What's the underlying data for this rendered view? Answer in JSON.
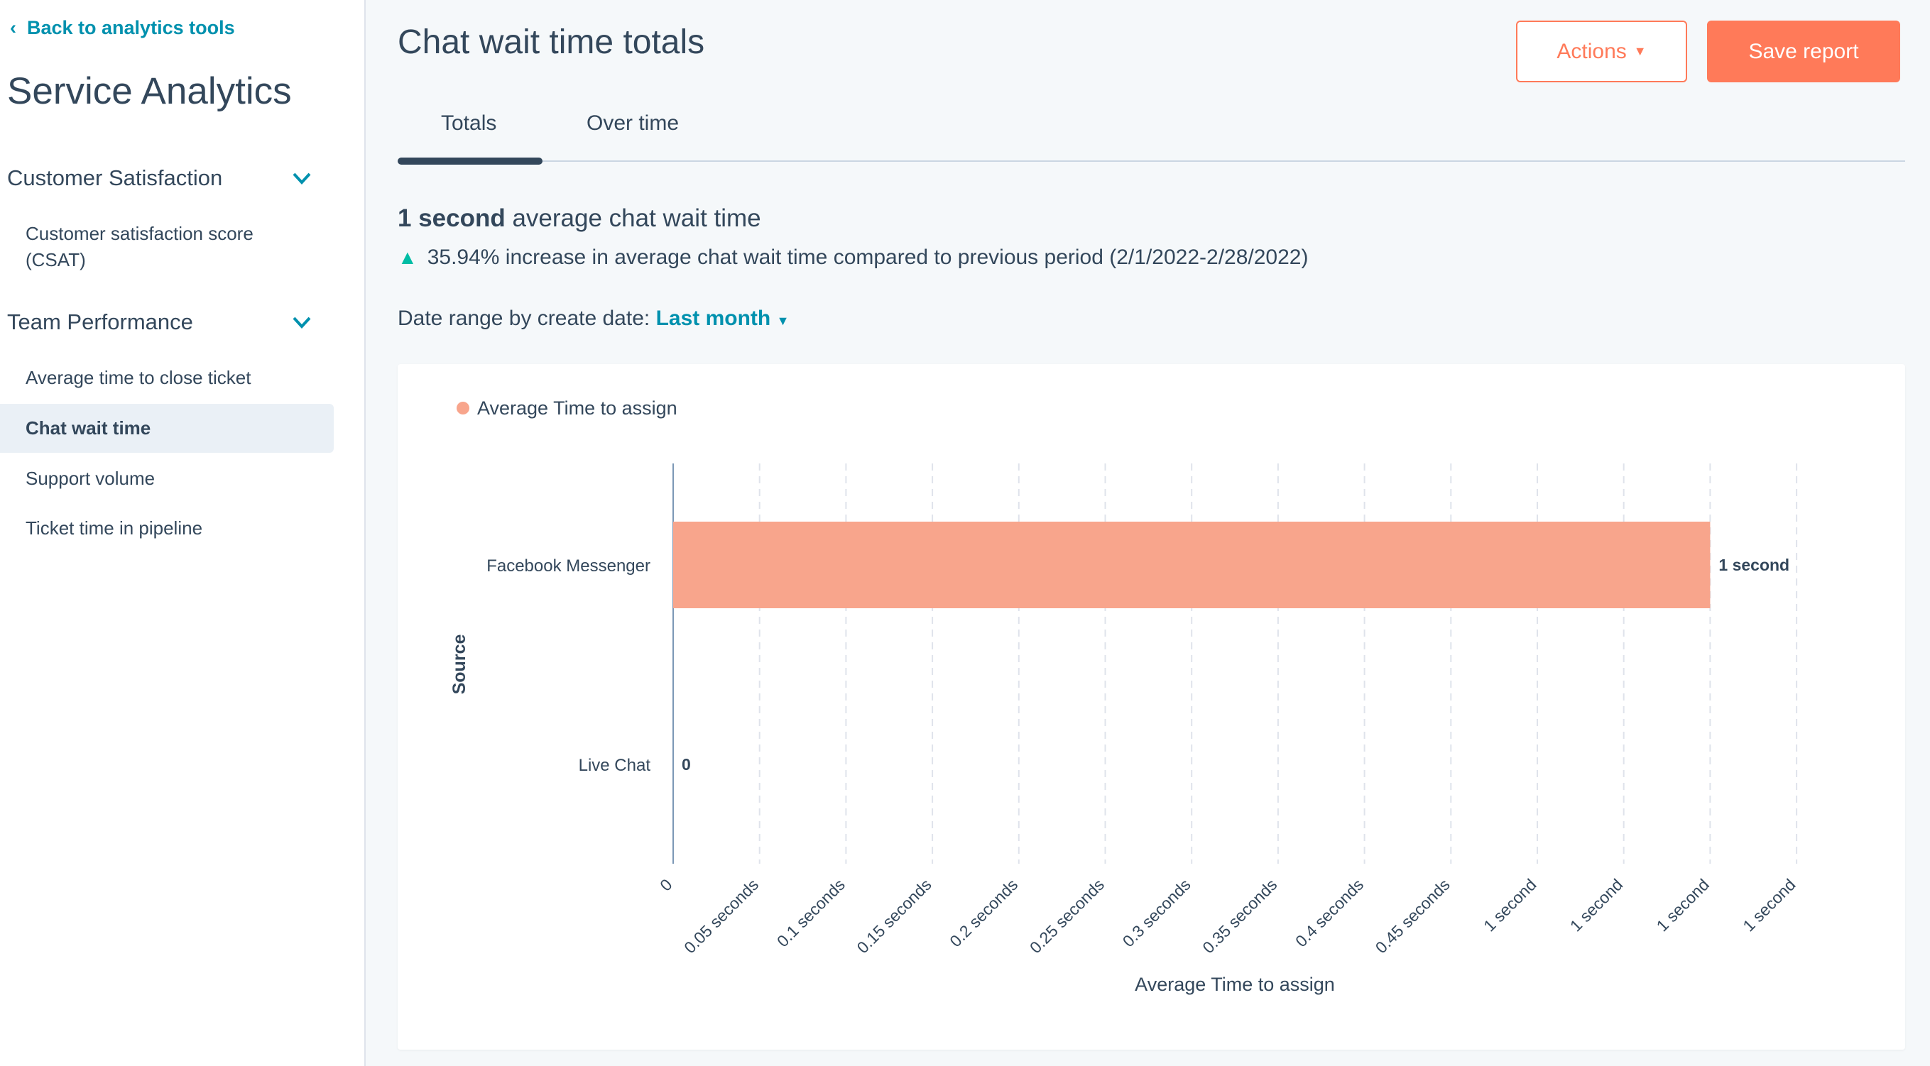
{
  "sidebar": {
    "back_link": "Back to analytics tools",
    "title": "Service Analytics",
    "sections": [
      {
        "label": "Customer Satisfaction",
        "items": [
          "Customer satisfaction score",
          "(CSAT)"
        ]
      },
      {
        "label": "Team Performance",
        "items": [
          "Average time to close ticket",
          "Chat wait time",
          "Support volume",
          "Ticket time in pipeline"
        ]
      }
    ],
    "selected": "Chat wait time"
  },
  "header": {
    "title": "Chat wait time totals",
    "actions_label": "Actions",
    "save_label": "Save report"
  },
  "tabs": [
    {
      "label": "Totals",
      "active": true
    },
    {
      "label": "Over time",
      "active": false
    }
  ],
  "summary": {
    "value": "1 second",
    "value_suffix": "average chat wait time",
    "change": "35.94% increase in average chat wait time compared to previous period (2/1/2022-2/28/2022)",
    "change_color": "#00bda5"
  },
  "date_range": {
    "label": "Date range by create date:",
    "value": "Last month"
  },
  "chart_data": {
    "type": "bar",
    "orientation": "horizontal",
    "legend": "top-left",
    "grid": true,
    "categories": [
      "Facebook Messenger",
      "Live Chat"
    ],
    "series": [
      {
        "name": "Average Time to assign",
        "values": [
          0.6,
          0
        ],
        "color": "#f8a58c"
      }
    ],
    "data_labels": [
      "1 second",
      "0"
    ],
    "xlabel": "Average Time to assign",
    "ylabel": "Source",
    "xlim": [
      0,
      0.65
    ],
    "xticks": [
      "0",
      "0.05 seconds",
      "0.1 seconds",
      "0.15 seconds",
      "0.2 seconds",
      "0.25 seconds",
      "0.3 seconds",
      "0.35 seconds",
      "0.4 seconds",
      "0.45 seconds",
      "1 second",
      "1 second",
      "1 second",
      "1 second"
    ]
  }
}
